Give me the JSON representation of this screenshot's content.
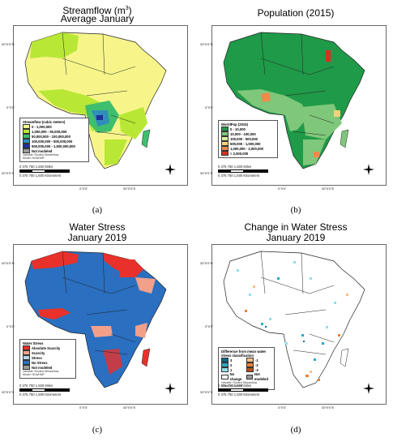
{
  "panels": [
    {
      "id": "a",
      "title_line1": "Streamflow (m",
      "title_sup": "3",
      "title_line1_end": ")",
      "title_line2": "Average January",
      "caption": "(a)",
      "legend": {
        "title": "Streamflow (cubic meters)",
        "items": [
          {
            "label": "0 - 1,000,000",
            "color": "#f7f58a"
          },
          {
            "label": "1,000,000 - 50,000,000",
            "color": "#b8e835"
          },
          {
            "label": "50,000,000 - 100,000,000",
            "color": "#3fbf6e"
          },
          {
            "label": "100,000,000 - 500,000,000",
            "color": "#2f8fb8"
          },
          {
            "label": "500,000,000 - 1,500,000,000",
            "color": "#1c2f9a"
          },
          {
            "label": "Not modeled",
            "color": "#9a9a9a"
          }
        ],
        "foot1": "Variable: Routed Streamflow",
        "foot2": "Model: NOAHMP"
      }
    },
    {
      "id": "b",
      "title_line1": "Population (2015)",
      "title_line2": "",
      "caption": "(b)",
      "legend": {
        "title": "WorldPop (2015)",
        "items": [
          {
            "label": "0 - 10,000",
            "color": "#1f9a48"
          },
          {
            "label": "10,000 - 100,000",
            "color": "#7fc77a"
          },
          {
            "label": "100,000 - 500,000",
            "color": "#d8ee9a"
          },
          {
            "label": "500,000 - 1,000,000",
            "color": "#f5d27a"
          },
          {
            "label": "1,000,000 - 2,000,000",
            "color": "#ef8a4a"
          },
          {
            "label": "> 2,000,000",
            "color": "#d7301f"
          }
        ],
        "foot1": "",
        "foot2": ""
      }
    },
    {
      "id": "c",
      "title_line1": "Water Stress",
      "title_line2": "January 2019",
      "caption": "(c)",
      "legend": {
        "title": "Water Stress",
        "items": [
          {
            "label": "Absolute Scarcity",
            "color": "#e8312a"
          },
          {
            "label": "Scarcity",
            "color": "#f3a08a"
          },
          {
            "label": "Stress",
            "color": "#b8d6ea"
          },
          {
            "label": "No Stress",
            "color": "#2a6fc0"
          },
          {
            "label": "Not modeled",
            "color": "#9a9a9a"
          }
        ],
        "foot1": "Variable: Routed Streamflow",
        "foot2": "Model: NOAHMP"
      }
    },
    {
      "id": "d",
      "title_line1": "Change in Water Stress",
      "title_line2": "January 2019",
      "caption": "(d)",
      "legend": {
        "title": "Difference from mean water stress classification",
        "items": [
          {
            "label": "3",
            "color": "#0a6b8a"
          },
          {
            "label": "-1",
            "color": "#f5c08a"
          },
          {
            "label": "2",
            "color": "#2aa8c8"
          },
          {
            "label": "-2",
            "color": "#e8823a"
          },
          {
            "label": "1",
            "color": "#8ee0ea"
          },
          {
            "label": "-3",
            "color": "#b8501a"
          },
          {
            "label": "No change",
            "color": "#ffffff"
          },
          {
            "label": "Not modeled",
            "color": "#9a9a9a"
          }
        ],
        "foot1": "Variable: Routed Streamflow",
        "foot2": "Model: NOAHMP"
      }
    }
  ],
  "coords": {
    "lat_n": "30°0'0\"N",
    "lat_eq": "0°0'0\"",
    "lat_s": "30°0'0\"S",
    "lon_0": "0°0'0\"",
    "lon_e": "30°0'0\"E"
  },
  "scale": {
    "miles": "0   375 750        1,500 Miles",
    "km": "0   375 750        1,500 Kilometers"
  },
  "north": {
    "n": "N",
    "s": "S",
    "e": "E",
    "w": "W"
  },
  "colors": {
    "ocean": "#ffffff",
    "border": "#222222"
  }
}
